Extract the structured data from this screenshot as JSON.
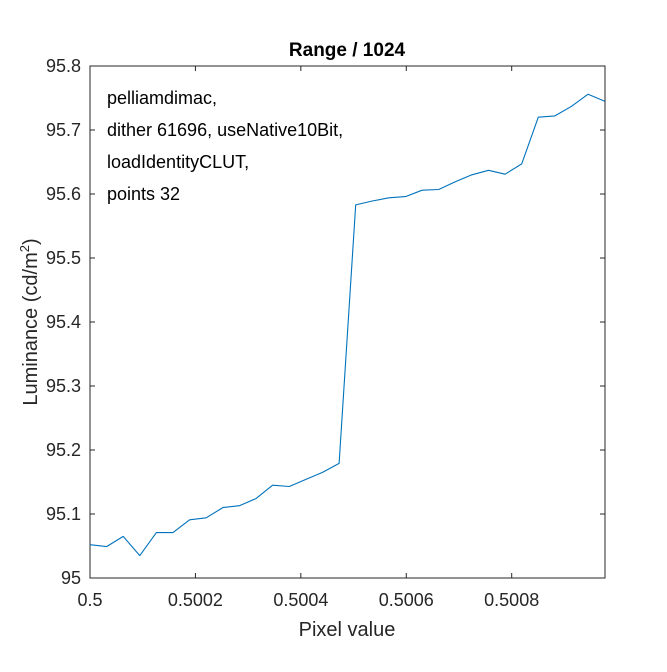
{
  "chart_data": {
    "type": "line",
    "title": "Range / 1024",
    "xlabel": "Pixel value",
    "ylabel_main": "Luminance (cd/m",
    "ylabel_sup": "2",
    "ylabel_end": ")",
    "xlim": [
      0.5,
      0.500977
    ],
    "ylim": [
      95,
      95.8
    ],
    "xticks": [
      0.5,
      0.5002,
      0.5004,
      0.5006,
      0.5008
    ],
    "xtick_labels": [
      "0.5",
      "0.5002",
      "0.5004",
      "0.5006",
      "0.5008"
    ],
    "yticks": [
      95,
      95.1,
      95.2,
      95.3,
      95.4,
      95.5,
      95.6,
      95.7,
      95.8
    ],
    "ytick_labels": [
      "95",
      "95.1",
      "95.2",
      "95.3",
      "95.4",
      "95.5",
      "95.6",
      "95.7",
      "95.8"
    ],
    "grid": false,
    "annotations": [
      "pelliamdimac,",
      "dither 61696, useNative10Bit,",
      "loadIdentityCLUT,",
      "points 32"
    ],
    "series": [
      {
        "color": "#0072bd",
        "x": [
          0.5,
          0.5000315,
          0.500063,
          0.5000945,
          0.500126,
          0.5001575,
          0.500189,
          0.5002205,
          0.500252,
          0.5002835,
          0.500315,
          0.5003465,
          0.500378,
          0.5004095,
          0.500441,
          0.5004725,
          0.500504,
          0.5005355,
          0.500567,
          0.5005985,
          0.50063,
          0.5006615,
          0.500693,
          0.5007245,
          0.500756,
          0.5007875,
          0.500819,
          0.5008505,
          0.500882,
          0.5009135,
          0.500945,
          0.5009765
        ],
        "y": [
          95.052,
          95.049,
          95.065,
          95.035,
          95.071,
          95.071,
          95.091,
          95.094,
          95.11,
          95.113,
          95.124,
          95.145,
          95.143,
          95.154,
          95.165,
          95.179,
          95.583,
          95.589,
          95.594,
          95.596,
          95.606,
          95.607,
          95.619,
          95.63,
          95.637,
          95.631,
          95.647,
          95.72,
          95.722,
          95.737,
          95.756,
          95.745
        ]
      }
    ]
  }
}
